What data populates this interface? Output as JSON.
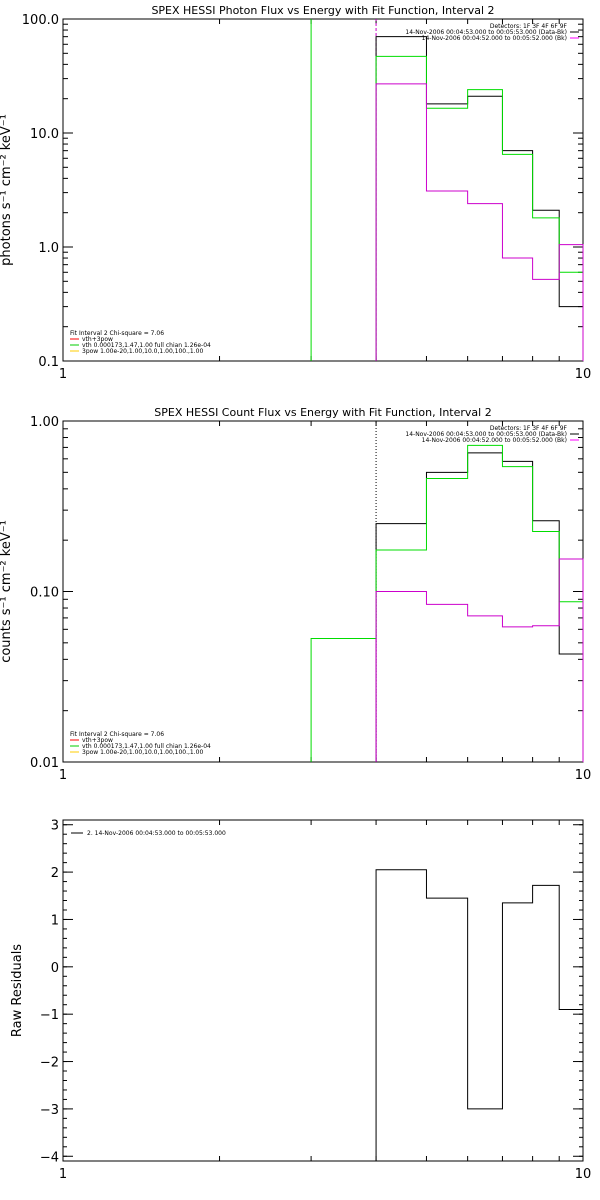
{
  "chart_data": [
    {
      "type": "step",
      "title": "SPEX HESSI Photon Flux vs Energy with Fit Function, Interval 2",
      "ylabel": "photons s⁻¹ cm⁻² keV⁻¹",
      "xscale": "log",
      "yscale": "log",
      "xlim": [
        1,
        10
      ],
      "ylim": [
        0.1,
        100
      ],
      "x_ticks": [
        {
          "v": 1,
          "label": "1"
        },
        {
          "v": 10,
          "label": "10"
        }
      ],
      "y_ticks": [
        {
          "v": 0.1,
          "label": "0.1"
        },
        {
          "v": 1,
          "label": "1.0"
        },
        {
          "v": 10,
          "label": "10.0"
        },
        {
          "v": 100,
          "label": "100.0"
        }
      ],
      "legend_top": [
        {
          "text": "Detectors: 1F 3F 4F 6F 9F",
          "color": ""
        },
        {
          "text": "14-Nov-2006 00:04:53.000 to 00:05:53.000 (Data-Bk)",
          "color": "#000000"
        },
        {
          "text": "14-Nov-2006 00:04:52.000 to 00:05:52.000 (Bk)",
          "color": "#ff00ff"
        }
      ],
      "legend_bottom": [
        {
          "text": "Fit Interval 2   Chi-square = 7.06",
          "color": ""
        },
        {
          "text": "vth+3pow",
          "color": "#ff0000"
        },
        {
          "text": "vth 0.000173,1.47,1.00  full chian 1.26e-04",
          "color": "#00cc00"
        },
        {
          "text": "3pow 1.00e-20,1.00,10.0,1.00,100.,1.00",
          "color": "#ffcc00"
        }
      ],
      "vlines": [
        {
          "x": 3.0,
          "y_from": 0.1,
          "y_to": 100,
          "color": "#00dd00",
          "style": "solid"
        },
        {
          "x": 4.0,
          "y_from": 0.1,
          "y_to": 100,
          "color": "#cc00cc",
          "style": "dashed"
        }
      ],
      "edges": [
        4,
        5,
        6,
        7,
        8,
        9,
        10
      ],
      "series": [
        {
          "name": "Data-Bk",
          "color": "#000000",
          "values": [
            70,
            18,
            21,
            7,
            2.1,
            0.3
          ]
        },
        {
          "name": "Fit",
          "color": "#00dd00",
          "values": [
            47,
            16.5,
            24,
            6.5,
            1.8,
            0.6
          ]
        },
        {
          "name": "Bk",
          "color": "#cc00cc",
          "values": [
            27,
            3.1,
            2.4,
            0.8,
            0.52,
            1.05
          ]
        }
      ]
    },
    {
      "type": "step",
      "title": "SPEX HESSI Count Flux vs Energy with Fit Function, Interval 2",
      "ylabel": "counts s⁻¹ cm⁻² keV⁻¹",
      "xscale": "log",
      "yscale": "log",
      "xlim": [
        1,
        10
      ],
      "ylim": [
        0.01,
        1
      ],
      "x_ticks": [
        {
          "v": 1,
          "label": "1"
        },
        {
          "v": 10,
          "label": "10"
        }
      ],
      "y_ticks": [
        {
          "v": 0.01,
          "label": "0.01"
        },
        {
          "v": 0.1,
          "label": "0.10"
        },
        {
          "v": 1,
          "label": "1.00"
        }
      ],
      "legend_top": [
        {
          "text": "Detectors: 1F 3F 4F 6F 9F",
          "color": ""
        },
        {
          "text": "14-Nov-2006 00:04:53.000 to 00:05:53.000 (Data-Bk)",
          "color": "#000000"
        },
        {
          "text": "14-Nov-2006 00:04:52.000 to 00:05:52.000 (Bk)",
          "color": "#ff00ff"
        }
      ],
      "legend_bottom": [
        {
          "text": "Fit Interval 2   Chi-square = 7.06",
          "color": ""
        },
        {
          "text": "vth+3pow",
          "color": "#ff0000"
        },
        {
          "text": "vth 0.000173,1.47,1.00  full chian 1.26e-04",
          "color": "#00cc00"
        },
        {
          "text": "3pow 1.00e-20,1.00,10.0,1.00,100.,1.00",
          "color": "#ffcc00"
        }
      ],
      "vlines": [
        {
          "x": 4.0,
          "y_from": 0.01,
          "y_to": 1,
          "color": "#000000",
          "style": "dotted"
        },
        {
          "x": 4.0,
          "y_from": 0.01,
          "y_to": 0.1,
          "color": "#cc00cc",
          "style": "dashed"
        }
      ],
      "edges": [
        3,
        4,
        5,
        6,
        7,
        8,
        9,
        10
      ],
      "series": [
        {
          "name": "Data-Bk",
          "color": "#000000",
          "values": [
            null,
            0.25,
            0.5,
            0.65,
            0.58,
            0.26,
            0.043
          ]
        },
        {
          "name": "Fit",
          "color": "#00dd00",
          "values": [
            0.053,
            0.175,
            0.46,
            0.72,
            0.54,
            0.225,
            0.087
          ]
        },
        {
          "name": "Bk",
          "color": "#cc00cc",
          "values": [
            null,
            0.1,
            0.084,
            0.072,
            0.062,
            0.063,
            0.155
          ]
        }
      ]
    },
    {
      "type": "step",
      "title": "",
      "ylabel": "Raw Residuals",
      "xscale": "log",
      "yscale": "linear",
      "xlim": [
        1,
        10
      ],
      "ylim": [
        -4.1,
        3.1
      ],
      "x_ticks": [
        {
          "v": 1,
          "label": "1"
        },
        {
          "v": 10,
          "label": "10"
        }
      ],
      "y_ticks": [
        {
          "v": -4,
          "label": "−4"
        },
        {
          "v": -3,
          "label": "−3"
        },
        {
          "v": -2,
          "label": "−2"
        },
        {
          "v": -1,
          "label": "−1"
        },
        {
          "v": 0,
          "label": "0"
        },
        {
          "v": 1,
          "label": "1"
        },
        {
          "v": 2,
          "label": "2"
        },
        {
          "v": 3,
          "label": "3"
        }
      ],
      "legend_top": [],
      "legend_residual": {
        "text": "2. 14-Nov-2006 00:04:53.000 to 00:05:53.000",
        "color": "#000000"
      },
      "legend_bottom": [],
      "vlines": [],
      "edges": [
        4,
        5,
        6,
        7,
        8,
        9,
        10
      ],
      "series": [
        {
          "name": "Residuals",
          "color": "#000000",
          "values": [
            2.05,
            1.45,
            -3.0,
            1.35,
            1.72,
            -0.9
          ]
        }
      ]
    }
  ]
}
